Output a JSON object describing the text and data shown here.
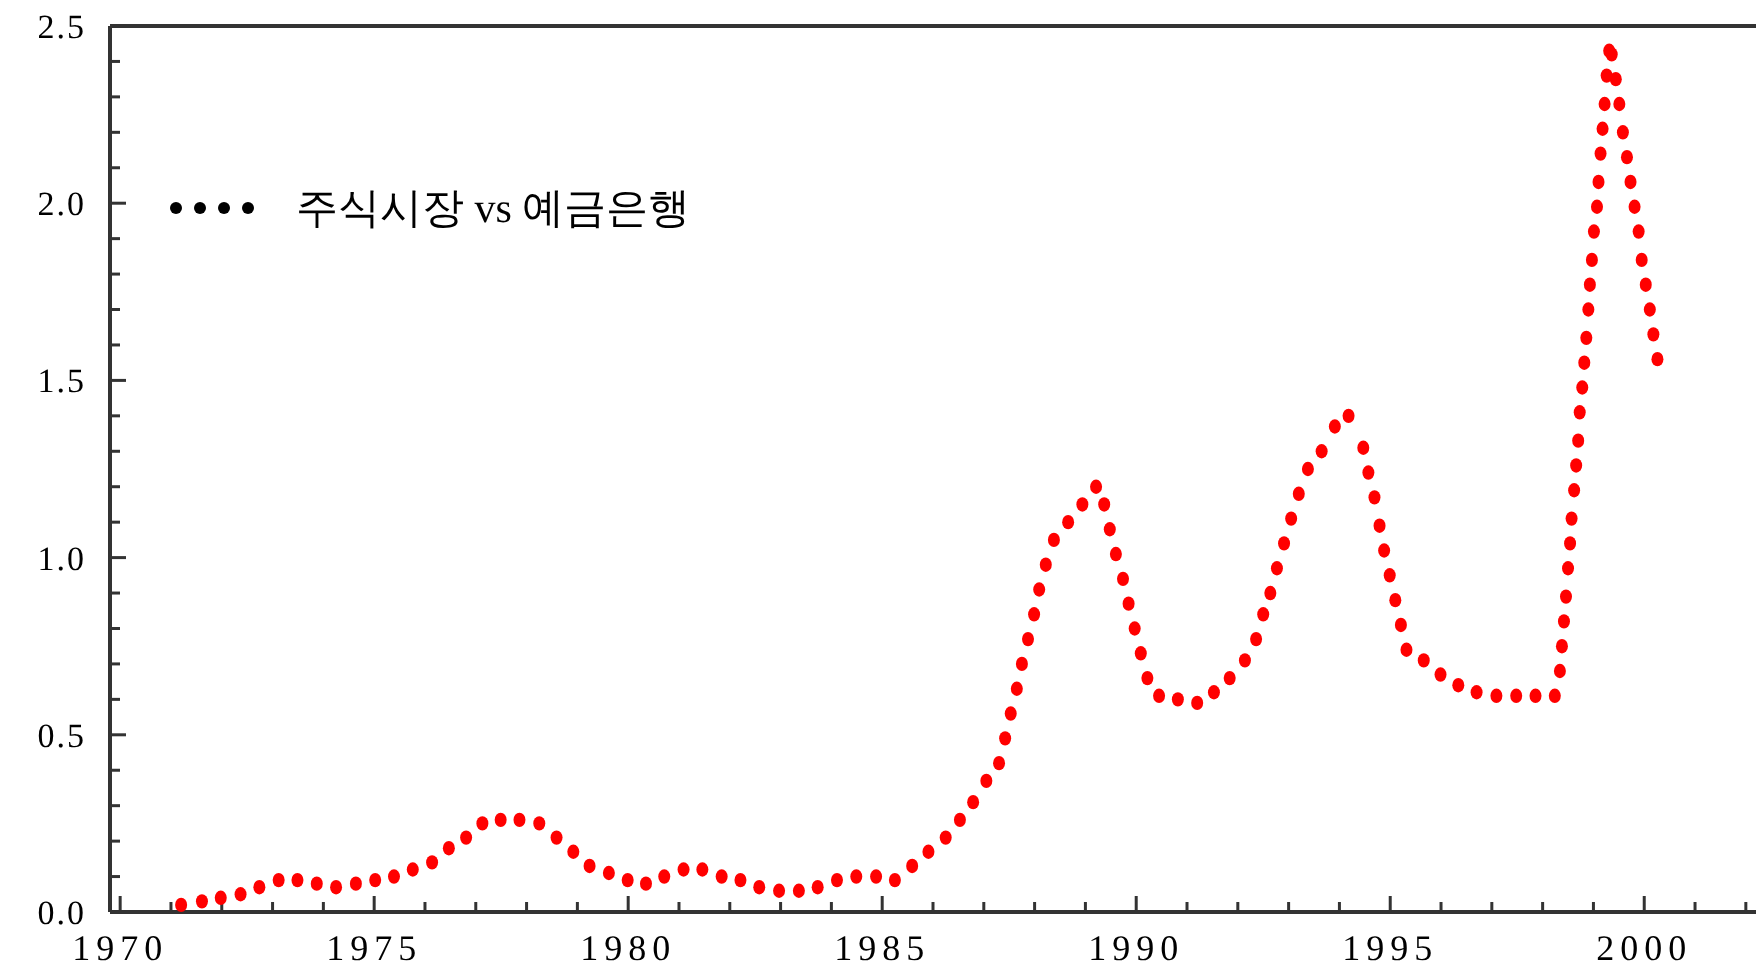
{
  "chart_data": {
    "type": "scatter",
    "xlim": [
      1969.8,
      2002.2
    ],
    "xticks": [
      1970,
      {
        "value": 1971,
        "label": null
      },
      {
        "value": 1972,
        "label": null
      },
      {
        "value": 1973,
        "label": null
      },
      {
        "value": 1974,
        "label": null
      },
      1975,
      {
        "value": 1976,
        "label": null
      },
      {
        "value": 1977,
        "label": null
      },
      {
        "value": 1978,
        "label": null
      },
      {
        "value": 1979,
        "label": null
      },
      1980,
      {
        "value": 1981,
        "label": null
      },
      {
        "value": 1982,
        "label": null
      },
      {
        "value": 1983,
        "label": null
      },
      {
        "value": 1984,
        "label": null
      },
      1985,
      {
        "value": 1986,
        "label": null
      },
      {
        "value": 1987,
        "label": null
      },
      {
        "value": 1988,
        "label": null
      },
      {
        "value": 1989,
        "label": null
      },
      1990,
      {
        "value": 1991,
        "label": null
      },
      {
        "value": 1992,
        "label": null
      },
      {
        "value": 1993,
        "label": null
      },
      {
        "value": 1994,
        "label": null
      },
      1995,
      {
        "value": 1996,
        "label": null
      },
      {
        "value": 1997,
        "label": null
      },
      {
        "value": 1998,
        "label": null
      },
      {
        "value": 1999,
        "label": null
      },
      2000,
      {
        "value": 2001,
        "label": null
      },
      {
        "value": 2002,
        "label": null
      }
    ],
    "ylim": [
      0,
      2.5
    ],
    "yticks": [
      {
        "value": 0,
        "label": "0.0"
      },
      {
        "value": 0.1,
        "label": null
      },
      {
        "value": 0.2,
        "label": null
      },
      {
        "value": 0.3,
        "label": null
      },
      {
        "value": 0.4,
        "label": null
      },
      {
        "value": 0.5,
        "label": "0.5"
      },
      {
        "value": 0.6,
        "label": null
      },
      {
        "value": 0.7,
        "label": null
      },
      {
        "value": 0.8,
        "label": null
      },
      {
        "value": 0.9,
        "label": null
      },
      {
        "value": 1.0,
        "label": "1.0"
      },
      {
        "value": 1.1,
        "label": null
      },
      {
        "value": 1.2,
        "label": null
      },
      {
        "value": 1.3,
        "label": null
      },
      {
        "value": 1.4,
        "label": null
      },
      {
        "value": 1.5,
        "label": "1.5"
      },
      {
        "value": 1.6,
        "label": null
      },
      {
        "value": 1.7,
        "label": null
      },
      {
        "value": 1.8,
        "label": null
      },
      {
        "value": 1.9,
        "label": null
      },
      {
        "value": 2.0,
        "label": "2.0"
      },
      {
        "value": 2.1,
        "label": null
      },
      {
        "value": 2.2,
        "label": null
      },
      {
        "value": 2.3,
        "label": null
      },
      {
        "value": 2.4,
        "label": null
      },
      {
        "value": 2.5,
        "label": "2.5"
      }
    ],
    "grid": false,
    "legend": "top left",
    "marker": "circle",
    "series": [
      {
        "name": "주식시장 vs 예금은행",
        "color": "#ff0000",
        "x": [
          1971.2,
          1971.61,
          1971.98,
          1972.37,
          1972.74,
          1973.12,
          1973.49,
          1973.87,
          1974.25,
          1974.64,
          1975.02,
          1975.39,
          1975.76,
          1976.14,
          1976.47,
          1976.81,
          1977.13,
          1977.49,
          1977.86,
          1978.25,
          1978.59,
          1978.92,
          1979.24,
          1979.62,
          1979.99,
          1980.35,
          1980.71,
          1981.09,
          1981.46,
          1981.84,
          1982.21,
          1982.58,
          1982.97,
          1983.36,
          1983.73,
          1984.11,
          1984.49,
          1984.88,
          1985.25,
          1985.59,
          1985.91,
          1986.25,
          1986.53,
          1986.79,
          1987.05,
          1987.3,
          1987.42,
          1987.53,
          1987.65,
          1987.75,
          1987.87,
          1987.99,
          1988.09,
          1988.22,
          1988.38,
          1988.66,
          1988.94,
          1989.21,
          1989.37,
          1989.48,
          1989.6,
          1989.74,
          1989.85,
          1989.97,
          1990.09,
          1990.22,
          1990.45,
          1990.82,
          1991.2,
          1991.53,
          1991.84,
          1992.14,
          1992.36,
          1992.5,
          1992.64,
          1992.77,
          1992.91,
          1993.05,
          1993.2,
          1993.38,
          1993.65,
          1993.91,
          1994.18,
          1994.47,
          1994.57,
          1994.69,
          1994.79,
          1994.88,
          1994.99,
          1995.1,
          1995.21,
          1995.32,
          1995.66,
          1995.99,
          1996.34,
          1996.7,
          1997.09,
          1997.48,
          1997.86,
          1998.24,
          1998.34,
          1998.38,
          1998.42,
          1998.46,
          1998.5,
          1998.54,
          1998.57,
          1998.62,
          1998.66,
          1998.7,
          1998.73,
          1998.78,
          1998.82,
          1998.86,
          1998.9,
          1998.93,
          1998.97,
          1999.01,
          1999.07,
          1999.1,
          1999.14,
          1999.18,
          1999.22,
          1999.26,
          1999.31,
          1999.36,
          1999.44,
          1999.51,
          1999.58,
          1999.66,
          1999.73,
          1999.81,
          1999.89,
          1999.95,
          2000.03,
          2000.11,
          2000.18,
          2000.26
        ],
        "values": [
          0.02,
          0.03,
          0.04,
          0.05,
          0.07,
          0.09,
          0.09,
          0.08,
          0.07,
          0.08,
          0.09,
          0.1,
          0.12,
          0.14,
          0.18,
          0.21,
          0.25,
          0.26,
          0.26,
          0.25,
          0.21,
          0.17,
          0.13,
          0.11,
          0.09,
          0.08,
          0.1,
          0.12,
          0.12,
          0.1,
          0.09,
          0.07,
          0.06,
          0.06,
          0.07,
          0.09,
          0.1,
          0.1,
          0.09,
          0.13,
          0.17,
          0.21,
          0.26,
          0.31,
          0.37,
          0.42,
          0.49,
          0.56,
          0.63,
          0.7,
          0.77,
          0.84,
          0.91,
          0.98,
          1.05,
          1.1,
          1.15,
          1.2,
          1.15,
          1.08,
          1.01,
          0.94,
          0.87,
          0.8,
          0.73,
          0.66,
          0.61,
          0.6,
          0.59,
          0.62,
          0.66,
          0.71,
          0.77,
          0.84,
          0.9,
          0.97,
          1.04,
          1.11,
          1.18,
          1.25,
          1.3,
          1.37,
          1.4,
          1.31,
          1.24,
          1.17,
          1.09,
          1.02,
          0.95,
          0.88,
          0.81,
          0.74,
          0.71,
          0.67,
          0.64,
          0.62,
          0.61,
          0.61,
          0.61,
          0.61,
          0.68,
          0.75,
          0.82,
          0.89,
          0.97,
          1.04,
          1.11,
          1.19,
          1.26,
          1.33,
          1.41,
          1.48,
          1.55,
          1.62,
          1.7,
          1.77,
          1.84,
          1.92,
          1.99,
          2.06,
          2.14,
          2.21,
          2.28,
          2.36,
          2.43,
          2.42,
          2.35,
          2.28,
          2.2,
          2.13,
          2.06,
          1.99,
          1.92,
          1.84,
          1.77,
          1.7,
          1.63,
          1.56
        ]
      }
    ]
  }
}
